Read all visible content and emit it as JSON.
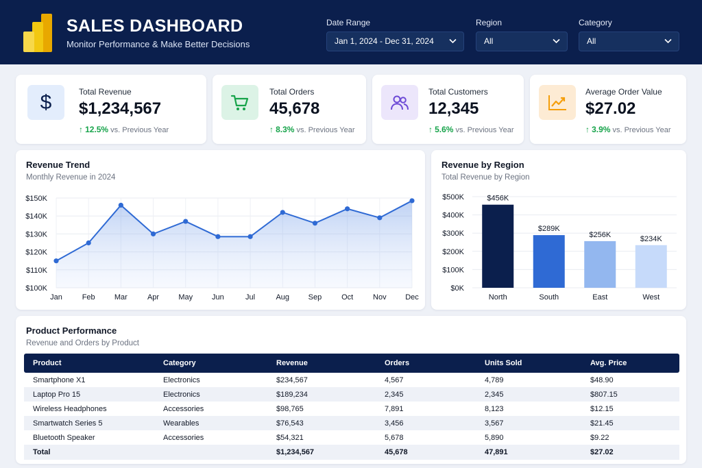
{
  "header": {
    "title": "SALES DASHBOARD",
    "subtitle": "Monitor Performance & Make Better Decisions",
    "filters": [
      {
        "label": "Date Range",
        "value": "Jan 1, 2024 - Dec 31, 2024"
      },
      {
        "label": "Region",
        "value": "All"
      },
      {
        "label": "Category",
        "value": "All"
      }
    ]
  },
  "kpis": [
    {
      "label": "Total Revenue",
      "value": "$1,234,567",
      "change": "12.5%",
      "compare": "vs. Previous Year",
      "icon": "dollar-icon",
      "color": "#e3edfc"
    },
    {
      "label": "Total Orders",
      "value": "45,678",
      "change": "8.3%",
      "compare": "vs. Previous Year",
      "icon": "cart-icon",
      "color": "#dcf3e6"
    },
    {
      "label": "Total Customers",
      "value": "12,345",
      "change": "5.6%",
      "compare": "vs. Previous Year",
      "icon": "users-icon",
      "color": "#ece6fb"
    },
    {
      "label": "Average Order Value",
      "value": "$27.02",
      "change": "3.9%",
      "compare": "vs. Previous Year",
      "icon": "trend-chart-icon",
      "color": "#fdebd4"
    }
  ],
  "revenue_trend": {
    "title": "Revenue Trend",
    "subtitle": "Monthly Revenue in 2024"
  },
  "revenue_region": {
    "title": "Revenue by Region",
    "subtitle": "Total Revenue by Region"
  },
  "chart_data": [
    {
      "type": "area",
      "title": "Revenue Trend",
      "subtitle": "Monthly Revenue in 2024",
      "categories": [
        "Jan",
        "Feb",
        "Mar",
        "Apr",
        "May",
        "Jun",
        "Jul",
        "Aug",
        "Sep",
        "Oct",
        "Nov",
        "Dec"
      ],
      "values": [
        115,
        125,
        146,
        130,
        137,
        128.5,
        128.5,
        142,
        136,
        144,
        139,
        148.5
      ],
      "yticks": [
        "$100K",
        "$110K",
        "$120K",
        "$130K",
        "$140K",
        "$150K"
      ],
      "ylim": [
        100,
        150
      ],
      "line_color": "#2f6ad4",
      "grid": true
    },
    {
      "type": "bar",
      "title": "Revenue by Region",
      "subtitle": "Total Revenue by Region",
      "categories": [
        "North",
        "South",
        "East",
        "West"
      ],
      "values": [
        456,
        289,
        256,
        234
      ],
      "labels": [
        "$456K",
        "$289K",
        "$256K",
        "$234K"
      ],
      "colors": [
        "#0b1f4d",
        "#2f6ad4",
        "#93b7ef",
        "#c6dafa"
      ],
      "yticks": [
        "$0K",
        "$100K",
        "$200K",
        "$300K",
        "$400K",
        "$500K"
      ],
      "ylim": [
        0,
        500
      ],
      "grid": true
    }
  ],
  "product_table": {
    "title": "Product Performance",
    "subtitle": "Revenue and Orders by Product",
    "columns": [
      "Product",
      "Category",
      "Revenue",
      "Orders",
      "Units Sold",
      "Avg. Price"
    ],
    "rows": [
      [
        "Smartphone X1",
        "Electronics",
        "$234,567",
        "4,567",
        "4,789",
        "$48.90"
      ],
      [
        "Laptop Pro 15",
        "Electronics",
        "$189,234",
        "2,345",
        "2,345",
        "$807.15"
      ],
      [
        "Wireless Headphones",
        "Accessories",
        "$98,765",
        "7,891",
        "8,123",
        "$12.15"
      ],
      [
        "Smartwatch Series 5",
        "Wearables",
        "$76,543",
        "3,456",
        "3,567",
        "$21.45"
      ],
      [
        "Bluetooth Speaker",
        "Accessories",
        "$54,321",
        "5,678",
        "5,890",
        "$9.22"
      ]
    ],
    "total": [
      "Total",
      "",
      "$1,234,567",
      "45,678",
      "47,891",
      "$27.02"
    ]
  }
}
